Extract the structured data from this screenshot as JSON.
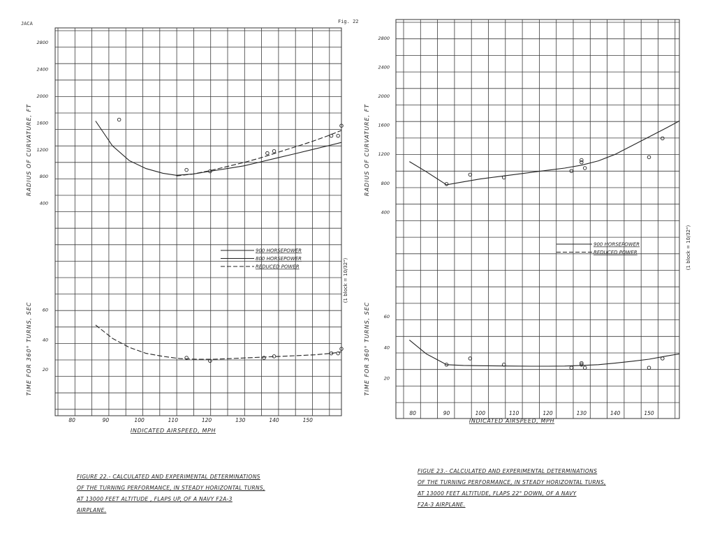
{
  "page": {
    "header_left": "JACA",
    "header_right": "Fig. 22"
  },
  "chart_data": [
    {
      "type": "line",
      "xlabel": "INDICATED AIRSPEED, MPH",
      "xticks": [
        "80",
        "90",
        "100",
        "110",
        "120",
        "130",
        "140",
        "150"
      ],
      "xlim": [
        75,
        160
      ],
      "scale_note": "(1 block = 10/32\")",
      "legend": [
        {
          "label": "900 HORSEPOWER",
          "style": "solid"
        },
        {
          "label": "800 HORSEPOWER",
          "style": "solid"
        },
        {
          "label": "REDUCED POWER",
          "style": "dashed"
        }
      ],
      "radius_panel": {
        "ylabel": "RADIUS OF CURVATURE, FT",
        "yticks": [
          "400",
          "800",
          "1200",
          "1600",
          "2000",
          "2400",
          "2800"
        ],
        "ylim": [
          0,
          3000
        ],
        "series": [
          {
            "name": "900 HORSEPOWER",
            "x": [
              87,
              92,
              97,
              102,
              107,
              111,
              116,
              121,
              126,
              131,
              136,
              141,
              146,
              151,
              156,
              160
            ],
            "y": [
              1630,
              1260,
              1040,
              920,
              850,
              820,
              840,
              880,
              920,
              960,
              1020,
              1080,
              1140,
              1200,
              1260,
              1310
            ]
          },
          {
            "name": "REDUCED POWER",
            "x": [
              111,
              116,
              121,
              126,
              131,
              136,
              141,
              146,
              151,
              156,
              160
            ],
            "y": [
              810,
              840,
              890,
              950,
              1010,
              1080,
              1160,
              1240,
              1320,
              1410,
              1490
            ]
          }
        ],
        "points": {
          "x": [
            94,
            114,
            121,
            138,
            140,
            157,
            159,
            160
          ],
          "y": [
            1650,
            900,
            880,
            1150,
            1180,
            1410,
            1410,
            1560
          ]
        }
      },
      "time_panel": {
        "ylabel": "TIME FOR 360° TURNS, SEC",
        "yticks": [
          "20",
          "40",
          "60"
        ],
        "ylim": [
          0,
          70
        ],
        "series": [
          {
            "name": "REDUCED POWER",
            "x": [
              87,
              92,
              97,
              102,
              107,
              112,
              117,
              122,
              127,
              132,
              137,
              142,
              147,
              152,
              157,
              160
            ],
            "y": [
              50,
              41,
              35,
              31,
              29,
              27.5,
              27,
              27,
              27.5,
              28,
              28.5,
              29,
              29.5,
              30,
              31,
              32
            ]
          }
        ],
        "points": {
          "x": [
            114,
            121,
            137,
            140,
            157,
            159,
            160
          ],
          "y": [
            28,
            26,
            28,
            29,
            31,
            31,
            34
          ]
        }
      },
      "caption": [
        "FIGURE 22.- CALCULATED AND EXPERIMENTAL DETERMINATIONS",
        "OF THE TURNING PERFORMANCE, IN STEADY HORIZONTAL TURNS,",
        "AT 13000 FEET ALTITUDE , FLAPS UP, OF A NAVY F2A-3",
        "AIRPLANE."
      ]
    },
    {
      "type": "line",
      "xlabel": "INDICATED AIRSPEED, MPH",
      "xticks": [
        "80",
        "90",
        "100",
        "110",
        "120",
        "130",
        "140",
        "150"
      ],
      "xlim": [
        75,
        159
      ],
      "scale_note": "(1 block = 10/32\")",
      "legend": [
        {
          "label": "900 HORSEPOWER",
          "style": "solid"
        },
        {
          "label": "REDUCED POWER",
          "style": "dashed"
        }
      ],
      "radius_panel": {
        "ylabel": "RADIUS OF CURVATURE, FT",
        "yticks": [
          "400",
          "800",
          "1200",
          "1600",
          "2000",
          "2400",
          "2800"
        ],
        "ylim": [
          0,
          3000
        ],
        "series": [
          {
            "name": "900 HORSEPOWER",
            "x": [
              79,
              84,
              90,
              95,
              100,
              105,
              110,
              115,
              120,
              125,
              130,
              135,
              140,
              145,
              150,
              155,
              159
            ],
            "y": [
              1100,
              960,
              780,
              820,
              860,
              890,
              920,
              950,
              980,
              1010,
              1050,
              1110,
              1200,
              1320,
              1440,
              1560,
              1660
            ]
          }
        ],
        "points": {
          "x": [
            90,
            97,
            107,
            127,
            130,
            130,
            131,
            150,
            154
          ],
          "y": [
            790,
            920,
            880,
            970,
            1120,
            1090,
            1010,
            1160,
            1420
          ]
        }
      },
      "time_panel": {
        "ylabel": "TIME FOR 360° TURNS, SEC",
        "yticks": [
          "20",
          "40",
          "60"
        ],
        "ylim": [
          0,
          70
        ],
        "series": [
          {
            "name": "900 HORSEPOWER",
            "x": [
              79,
              84,
              90,
              95,
              100,
              105,
              110,
              115,
              120,
              125,
              130,
              135,
              140,
              145,
              150,
              155,
              159
            ],
            "y": [
              45,
              36,
              29,
              28.5,
              28.3,
              28.2,
              28.1,
              28,
              28,
              28.1,
              28.5,
              29,
              30,
              31.2,
              32.5,
              34.5,
              36
            ]
          }
        ],
        "points": {
          "x": [
            90,
            97,
            107,
            127,
            130,
            130,
            131,
            150,
            154
          ],
          "y": [
            29,
            33,
            29,
            27,
            30,
            29,
            27,
            27,
            33
          ]
        }
      },
      "caption": [
        "FIGUE 23.- CALCULATED AND EXPERIMENTAL DETERMINATIONS",
        "OF THE TURNING PERFORMANCE, IN STEADY HORIZONTAL TURNS,",
        "AT 13000 FEET ALTITUDE, FLAPS 22° DOWN, OF A NAVY",
        "F2A-3 AIRPLANE."
      ]
    }
  ]
}
